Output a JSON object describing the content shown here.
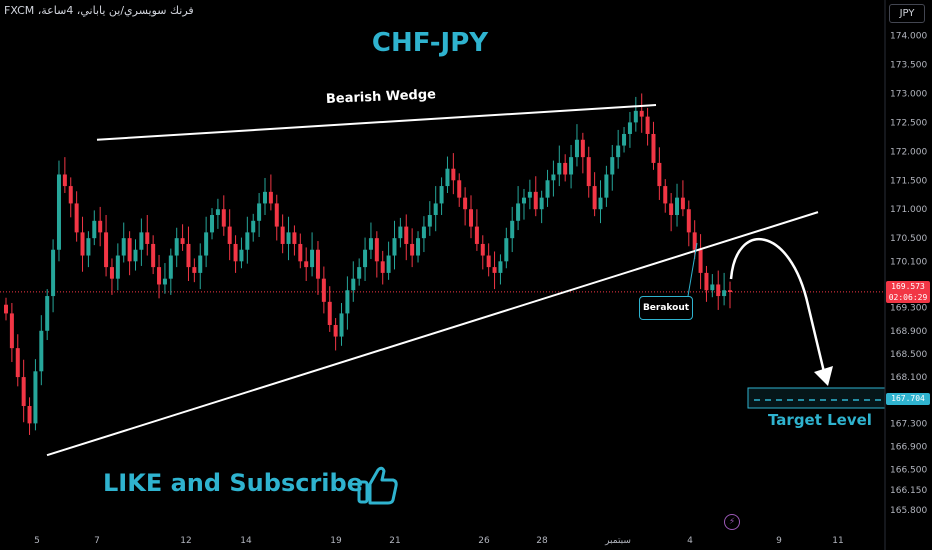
{
  "header": {
    "symbol_line": "فرنك سويسري/ين ياباني، 4ساعة، FXCM",
    "currency": "JPY"
  },
  "annotations": {
    "title": "CHF-JPY",
    "wedge_label": "Bearish Wedge",
    "breakout_label": "Berakout",
    "target_label": "Target Level",
    "cta": "LIKE and Subscribe"
  },
  "price_tags": {
    "current_price": "169.573",
    "countdown": "02:06:29",
    "target_price": "167.704"
  },
  "colors": {
    "up": "#26a69a",
    "down": "#f23645",
    "accent": "#2fb3cf",
    "background": "#000000"
  },
  "icons": [
    "thumbs-up-icon",
    "bolt-icon"
  ],
  "chart_data": {
    "type": "candlestick",
    "title": "CHF-JPY",
    "y_ticks": [
      "174.000",
      "173.500",
      "173.000",
      "172.500",
      "172.000",
      "171.500",
      "171.000",
      "170.500",
      "170.100",
      "169.700",
      "169.300",
      "168.900",
      "168.500",
      "168.100",
      "167.700",
      "167.300",
      "166.900",
      "166.500",
      "166.150",
      "165.800"
    ],
    "x_ticks": [
      "5",
      "7",
      "12",
      "14",
      "19",
      "21",
      "26",
      "28",
      "سبتمبر",
      "4",
      "9",
      "11"
    ],
    "ylim": [
      165.7,
      174.2
    ],
    "current_price": 169.573,
    "target_level": 167.704,
    "wedge_upper": [
      [
        7,
        172.2
      ],
      [
        26,
        172.8
      ]
    ],
    "wedge_lower": [
      [
        5,
        166.75
      ],
      [
        36,
        170.95
      ]
    ],
    "closes": [
      169.2,
      168.6,
      168.1,
      167.6,
      167.3,
      168.2,
      168.9,
      169.5,
      170.3,
      171.6,
      171.4,
      171.1,
      170.6,
      170.2,
      170.5,
      170.8,
      170.6,
      170.0,
      169.8,
      170.2,
      170.5,
      170.1,
      170.3,
      170.6,
      170.4,
      170.0,
      169.7,
      169.8,
      170.2,
      170.5,
      170.4,
      170.0,
      169.9,
      170.2,
      170.6,
      170.9,
      171.0,
      170.7,
      170.4,
      170.1,
      170.3,
      170.6,
      170.8,
      171.1,
      171.3,
      171.1,
      170.7,
      170.4,
      170.6,
      170.4,
      170.1,
      170.0,
      170.3,
      169.8,
      169.4,
      169.0,
      168.8,
      169.2,
      169.6,
      169.8,
      170.0,
      170.3,
      170.5,
      170.1,
      169.9,
      170.2,
      170.5,
      170.7,
      170.4,
      170.2,
      170.5,
      170.7,
      170.9,
      171.1,
      171.4,
      171.7,
      171.5,
      171.2,
      171.0,
      170.7,
      170.4,
      170.2,
      170.0,
      169.9,
      170.1,
      170.5,
      170.8,
      171.1,
      171.2,
      171.3,
      171.0,
      171.2,
      171.5,
      171.6,
      171.8,
      171.6,
      171.9,
      172.2,
      171.9,
      171.4,
      171.0,
      171.2,
      171.6,
      171.9,
      172.1,
      172.3,
      172.5,
      172.7,
      172.6,
      172.3,
      171.8,
      171.4,
      171.1,
      170.9,
      171.2,
      171.0,
      170.6,
      170.3,
      169.9,
      169.6,
      169.7,
      169.5,
      169.6,
      169.57
    ]
  }
}
